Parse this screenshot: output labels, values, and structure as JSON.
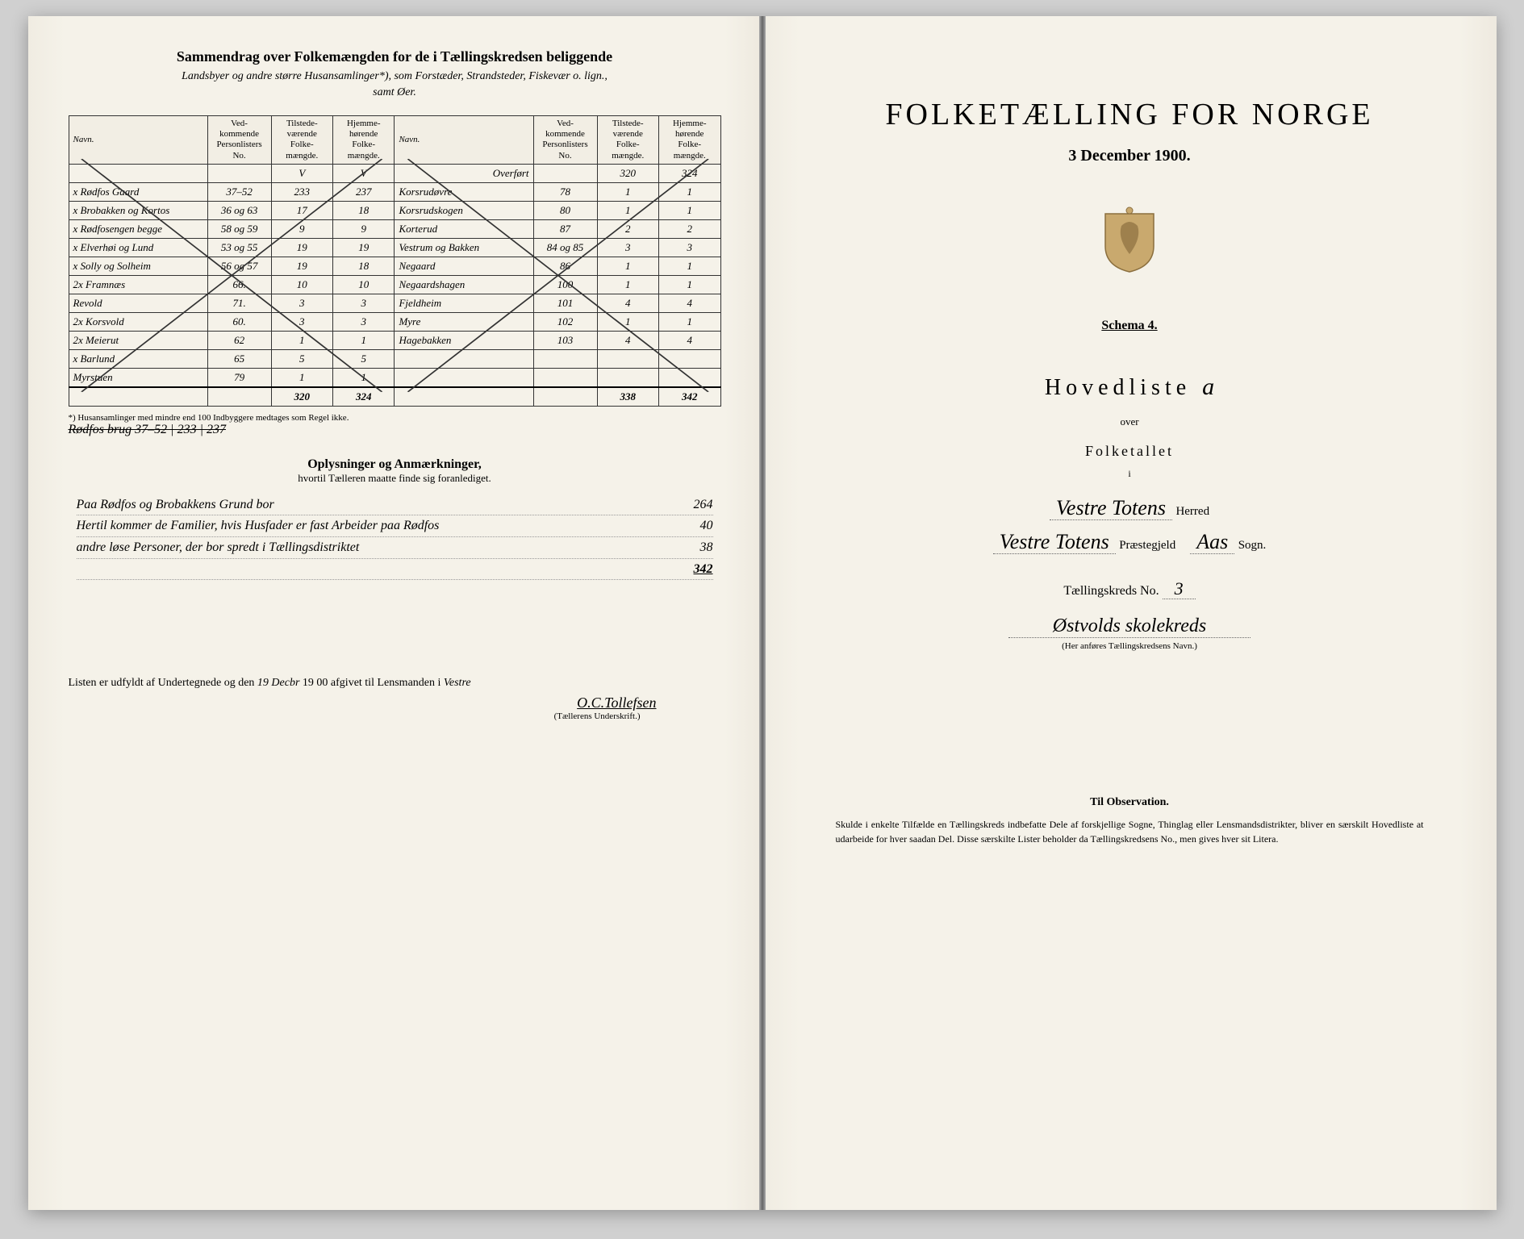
{
  "left": {
    "header": {
      "title": "Sammendrag over Folkemængden for de i Tællingskredsen beliggende",
      "sub1": "Landsbyer og andre større Husansamlinger*), som Forstæder, Strandsteder, Fiskevær o. lign.,",
      "sub2": "samt Øer."
    },
    "columns": [
      "Navn.",
      "Ved-kommende Personlisters No.",
      "Tilstede-værende Folke-mængde.",
      "Hjemme-hørende Folke-mængde.",
      "Navn.",
      "Ved-kommende Personlisters No.",
      "Tilstede-værende Folke-mængde.",
      "Hjemme-hørende Folke-mængde."
    ],
    "overfort": {
      "label": "Overført",
      "t": "320",
      "h": "324"
    },
    "rows": [
      {
        "n1": "x Rødfos Gaard",
        "p1": "37–52",
        "t1": "233",
        "h1": "237",
        "n2": "Korsrudøvre",
        "p2": "78",
        "t2": "1",
        "h2": "1"
      },
      {
        "n1": "x Brobakken og Kortos",
        "p1": "36 og 63",
        "t1": "17",
        "h1": "18",
        "n2": "Korsrudskogen",
        "p2": "80",
        "t2": "1",
        "h2": "1"
      },
      {
        "n1": "x Rødfosengen begge",
        "p1": "58 og 59",
        "t1": "9",
        "h1": "9",
        "n2": "Korterud",
        "p2": "87",
        "t2": "2",
        "h2": "2"
      },
      {
        "n1": "x Elverhøi og Lund",
        "p1": "53 og 55",
        "t1": "19",
        "h1": "19",
        "n2": "Vestrum og Bakken",
        "p2": "84 og 85",
        "t2": "3",
        "h2": "3"
      },
      {
        "n1": "x Solly og Solheim",
        "p1": "56 og 57",
        "t1": "19",
        "h1": "18",
        "n2": "Negaard",
        "p2": "86",
        "t2": "1",
        "h2": "1"
      },
      {
        "n1": "2x Framnæs",
        "p1": "66.",
        "t1": "10",
        "h1": "10",
        "n2": "Negaardshagen",
        "p2": "100",
        "t2": "1",
        "h2": "1"
      },
      {
        "n1": "Revold",
        "p1": "71.",
        "t1": "3",
        "h1": "3",
        "n2": "Fjeldheim",
        "p2": "101",
        "t2": "4",
        "h2": "4"
      },
      {
        "n1": "2x Korsvold",
        "p1": "60.",
        "t1": "3",
        "h1": "3",
        "n2": "Myre",
        "p2": "102",
        "t2": "1",
        "h2": "1"
      },
      {
        "n1": "2x Meierut",
        "p1": "62",
        "t1": "1",
        "h1": "1",
        "n2": "Hagebakken",
        "p2": "103",
        "t2": "4",
        "h2": "4"
      },
      {
        "n1": "x Barlund",
        "p1": "65",
        "t1": "5",
        "h1": "5",
        "n2": "",
        "p2": "",
        "t2": "",
        "h2": ""
      },
      {
        "n1": "Myrstuen",
        "p1": "79",
        "t1": "1",
        "h1": "1",
        "n2": "",
        "p2": "",
        "t2": "",
        "h2": ""
      }
    ],
    "totals": {
      "t1": "320",
      "h1": "324",
      "t2": "338",
      "h2": "342"
    },
    "footnote": "*) Husansamlinger med mindre end 100 Indbyggere medtages som Regel ikke.",
    "struck": "Rødfos brug 37–52 | 233 | 237",
    "oplysninger": {
      "title": "Oplysninger og Anmærkninger,",
      "sub": "hvortil Tælleren maatte finde sig foranlediget.",
      "lines": [
        {
          "text": "Paa Rødfos og Brobakkens Grund bor",
          "num": "264"
        },
        {
          "text": "Hertil kommer de Familier, hvis Husfader er fast Arbeider paa Rødfos",
          "num": "40"
        },
        {
          "text": "andre løse Personer, der bor spredt i Tællingsdistriktet",
          "num": "38"
        },
        {
          "text": "",
          "num": "342"
        }
      ]
    },
    "signature": {
      "line": "Listen er udfyldt af Undertegnede og den",
      "date_hand": "19 Decbr",
      "year": "19 00",
      "afgivet": "afgivet til Lensmanden i",
      "place_hand": "Vestre",
      "signed": "O.C.Tollefsen",
      "caption": "(Tællerens Underskrift.)"
    }
  },
  "right": {
    "title": "FOLKETÆLLING FOR NORGE",
    "date": "3 December 1900.",
    "schema": "Schema 4.",
    "hovedliste": "Hovedliste",
    "hoved_letter": "a",
    "over": "over",
    "folketallet": "Folketallet",
    "i": "i",
    "herred_hand": "Vestre Totens",
    "herred_label": "Herred",
    "prest_hand": "Vestre Totens",
    "prest_label": "Præstegjeld",
    "sogn_hand": "Aas",
    "sogn_label": "Sogn.",
    "kreds_label": "Tællingskreds No.",
    "kreds_no": "3",
    "kreds_name": "Østvolds skolekreds",
    "kreds_caption": "(Her anføres Tællingskredsens Navn.)",
    "obs_title": "Til Observation.",
    "obs_text": "Skulde i enkelte Tilfælde en Tællingskreds indbefatte Dele af forskjellige Sogne, Thinglag eller Lensmandsdistrikter, bliver en særskilt Hovedliste at udarbeide for hver saadan Del. Disse særskilte Lister beholder da Tællingskredsens No., men gives hver sit Litera."
  },
  "colors": {
    "paper": "#f5f2e9",
    "ink": "#1a1a1a",
    "border": "#333333",
    "crest_bg": "#c9a96e"
  }
}
